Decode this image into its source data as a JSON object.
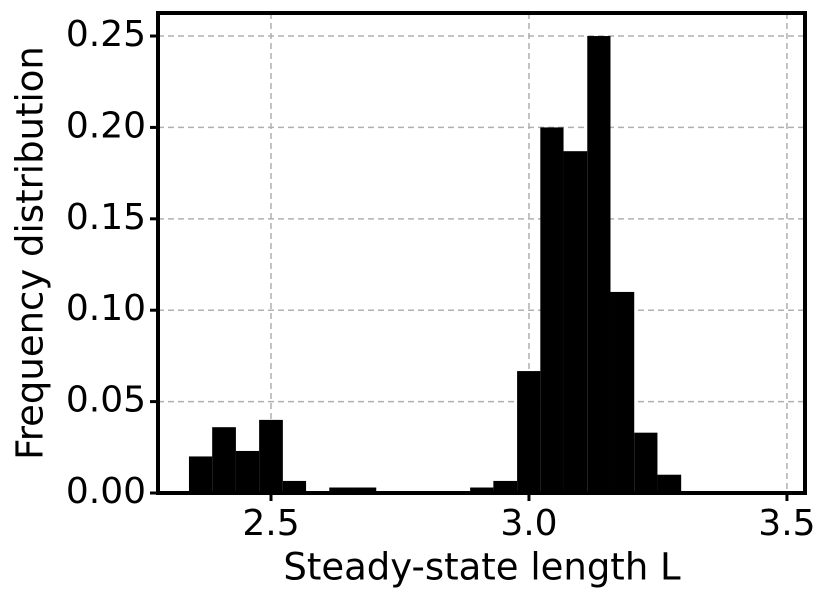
{
  "chart_data": {
    "type": "histogram",
    "x_label": "Steady-state length L",
    "y_label": "Frequency distribution",
    "bins": [
      2.341,
      2.386,
      2.432,
      2.477,
      2.523,
      2.568,
      2.613,
      2.659,
      2.704,
      2.75,
      2.795,
      2.84,
      2.886,
      2.931,
      2.977,
      3.022,
      3.067,
      3.113,
      3.158,
      3.204,
      3.249,
      3.295
    ],
    "values": [
      0.02,
      0.036,
      0.023,
      0.04,
      0.0066,
      0.001,
      0.003,
      0.003,
      0,
      0,
      0,
      0,
      0.003,
      0.0066,
      0.0667,
      0.2,
      0.187,
      0.25,
      0.11,
      0.033,
      0.01
    ],
    "color": "#000000",
    "xlim": [
      2.281,
      3.535
    ],
    "ylim": [
      0,
      0.2626
    ],
    "xticks": [
      2.5,
      {
        "value": 3.0,
        "label": "3.0"
      },
      3.5
    ],
    "yticks": [
      {
        "value": 0,
        "label": "0.00"
      },
      {
        "value": 0.05,
        "label": "0.05"
      },
      {
        "value": 0.1,
        "label": "0.10"
      },
      {
        "value": 0.15,
        "label": "0.15"
      },
      {
        "value": 0.2,
        "label": "0.20"
      },
      {
        "value": 0.25,
        "label": "0.25"
      }
    ],
    "grid": true
  }
}
